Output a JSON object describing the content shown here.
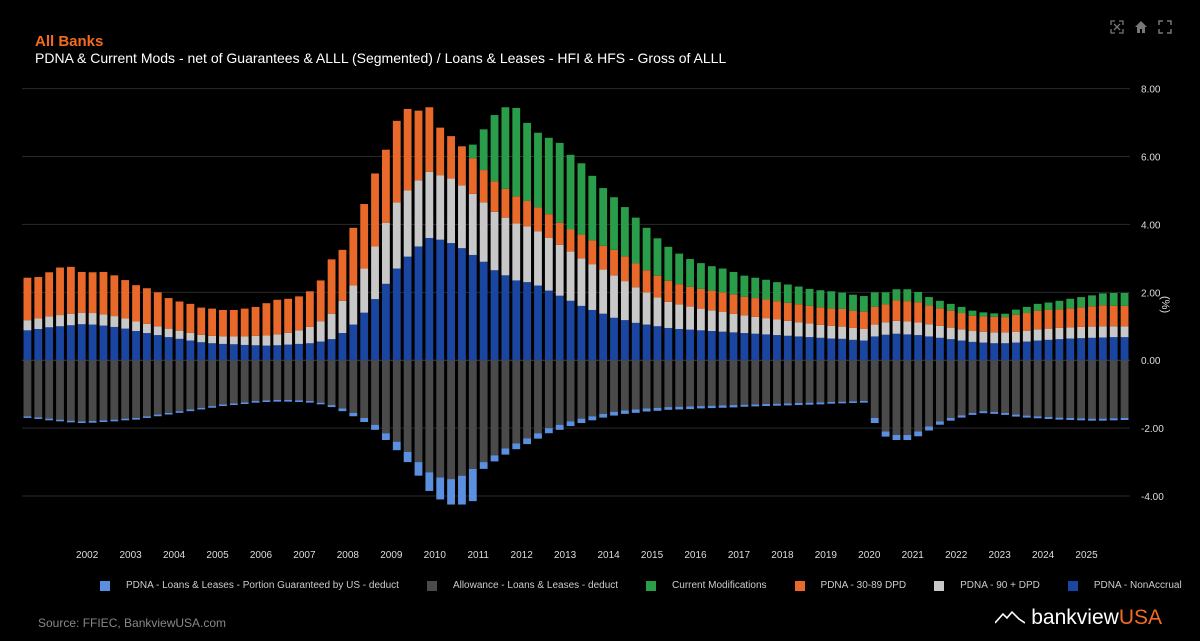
{
  "header": {
    "title": "All Banks",
    "subtitle": "PDNA & Current Mods - net of Guarantees & ALLL (Segmented)  /  Loans & Leases - HFI & HFS - Gross of ALLL"
  },
  "toolbar": {
    "icons": [
      "autoscale-icon",
      "home-icon",
      "fullscreen-icon"
    ]
  },
  "footer": {
    "source": "Source: FFIEC, BankviewUSA.com",
    "brand_main": "bankview",
    "brand_accent": "USA"
  },
  "colors": {
    "title": "#f26b21",
    "guaranteed": "#5b8fe0",
    "allowance": "#4a4a4a",
    "mods": "#2a9d4a",
    "dpd30": "#e8692a",
    "dpd90": "#c8c8c8",
    "nonaccrual": "#1a45a0",
    "grid": "#2a2a2a"
  },
  "chart_data": {
    "type": "bar",
    "stacked": true,
    "title": "PDNA & Current Mods - net of Guarantees & ALLL (Segmented)  /  Loans & Leases - HFI & HFS - Gross of ALLL",
    "ylabel": "(%)",
    "ylim": [
      -5.0,
      8.4
    ],
    "yticks": [
      8.0,
      6.0,
      4.0,
      2.0,
      0.0,
      -2.0,
      -4.0
    ],
    "ytick_labels": [
      "8.00",
      "6.00",
      "4.00",
      "2.00",
      "0.00",
      "-2.00",
      "-4.00"
    ],
    "x_start": {
      "year": 2001,
      "quarter": 1
    },
    "year_labels": [
      "2002",
      "2003",
      "2004",
      "2005",
      "2006",
      "2007",
      "2008",
      "2009",
      "2010",
      "2011",
      "2012",
      "2013",
      "2014",
      "2015",
      "2016",
      "2017",
      "2018",
      "2019",
      "2020",
      "2021",
      "2022",
      "2023",
      "2024",
      "2025"
    ],
    "series_order_positive": [
      "nonaccrual",
      "dpd90",
      "dpd30",
      "mods"
    ],
    "series_order_negative": [
      "allowance",
      "guaranteed"
    ],
    "legend": [
      {
        "key": "guaranteed",
        "name": "PDNA - Loans & Leases - Portion Guaranteed by US - deduct"
      },
      {
        "key": "allowance",
        "name": "Allowance - Loans & Leases - deduct"
      },
      {
        "key": "mods",
        "name": "Current Modifications"
      },
      {
        "key": "dpd30",
        "name": "PDNA - 30-89 DPD"
      },
      {
        "key": "dpd90",
        "name": "PDNA - 90 + DPD"
      },
      {
        "key": "nonaccrual",
        "name": "PDNA - NonAccrual"
      }
    ],
    "series": {
      "nonaccrual": [
        0.88,
        0.92,
        0.97,
        1.0,
        1.03,
        1.06,
        1.05,
        1.02,
        0.98,
        0.93,
        0.86,
        0.8,
        0.74,
        0.68,
        0.63,
        0.58,
        0.53,
        0.5,
        0.48,
        0.47,
        0.45,
        0.44,
        0.43,
        0.44,
        0.46,
        0.48,
        0.5,
        0.55,
        0.62,
        0.8,
        1.05,
        1.4,
        1.8,
        2.25,
        2.7,
        3.05,
        3.35,
        3.6,
        3.55,
        3.45,
        3.3,
        3.1,
        2.9,
        2.65,
        2.5,
        2.35,
        2.3,
        2.2,
        2.05,
        1.9,
        1.75,
        1.6,
        1.48,
        1.37,
        1.25,
        1.18,
        1.1,
        1.05,
        1.0,
        0.95,
        0.92,
        0.9,
        0.88,
        0.86,
        0.84,
        0.82,
        0.8,
        0.78,
        0.76,
        0.74,
        0.72,
        0.7,
        0.68,
        0.66,
        0.64,
        0.63,
        0.6,
        0.58,
        0.7,
        0.75,
        0.78,
        0.76,
        0.74,
        0.7,
        0.66,
        0.62,
        0.58,
        0.54,
        0.52,
        0.5,
        0.5,
        0.52,
        0.55,
        0.58,
        0.6,
        0.62,
        0.64,
        0.65,
        0.66,
        0.67,
        0.68,
        0.68
      ],
      "dpd90": [
        0.3,
        0.31,
        0.32,
        0.33,
        0.34,
        0.34,
        0.34,
        0.33,
        0.32,
        0.3,
        0.28,
        0.27,
        0.26,
        0.25,
        0.24,
        0.23,
        0.22,
        0.22,
        0.22,
        0.23,
        0.25,
        0.28,
        0.3,
        0.32,
        0.35,
        0.4,
        0.48,
        0.6,
        0.75,
        0.95,
        1.15,
        1.3,
        1.55,
        1.8,
        1.95,
        1.95,
        1.95,
        1.95,
        1.9,
        1.9,
        1.85,
        1.8,
        1.75,
        1.72,
        1.7,
        1.68,
        1.64,
        1.6,
        1.55,
        1.5,
        1.45,
        1.4,
        1.35,
        1.3,
        1.25,
        1.15,
        1.05,
        0.95,
        0.85,
        0.77,
        0.72,
        0.68,
        0.64,
        0.61,
        0.58,
        0.55,
        0.52,
        0.5,
        0.48,
        0.46,
        0.44,
        0.42,
        0.4,
        0.38,
        0.37,
        0.36,
        0.35,
        0.34,
        0.35,
        0.37,
        0.38,
        0.38,
        0.37,
        0.36,
        0.35,
        0.34,
        0.33,
        0.32,
        0.32,
        0.32,
        0.32,
        0.32,
        0.32,
        0.33,
        0.33,
        0.33,
        0.33,
        0.33,
        0.33,
        0.33,
        0.32,
        0.32
      ],
      "dpd30": [
        1.25,
        1.22,
        1.3,
        1.4,
        1.38,
        1.2,
        1.2,
        1.25,
        1.2,
        1.13,
        1.07,
        1.05,
        1.0,
        0.9,
        0.86,
        0.85,
        0.8,
        0.8,
        0.78,
        0.78,
        0.82,
        0.85,
        0.95,
        1.02,
        1.0,
        1.0,
        1.05,
        1.2,
        1.6,
        1.5,
        1.7,
        1.9,
        2.15,
        2.15,
        2.4,
        2.4,
        2.05,
        1.9,
        1.4,
        1.25,
        1.15,
        1.05,
        0.95,
        0.9,
        0.85,
        0.8,
        0.75,
        0.7,
        0.7,
        0.65,
        0.65,
        0.7,
        0.7,
        0.7,
        0.75,
        0.73,
        0.7,
        0.65,
        0.64,
        0.62,
        0.6,
        0.58,
        0.58,
        0.58,
        0.58,
        0.57,
        0.55,
        0.55,
        0.55,
        0.54,
        0.53,
        0.53,
        0.52,
        0.52,
        0.52,
        0.52,
        0.51,
        0.51,
        0.52,
        0.52,
        0.6,
        0.6,
        0.6,
        0.55,
        0.52,
        0.5,
        0.48,
        0.45,
        0.45,
        0.46,
        0.45,
        0.5,
        0.52,
        0.55,
        0.55,
        0.55,
        0.56,
        0.58,
        0.6,
        0.62,
        0.6,
        0.6
      ],
      "mods": [
        0,
        0,
        0,
        0,
        0,
        0,
        0,
        0,
        0,
        0,
        0,
        0,
        0,
        0,
        0,
        0,
        0,
        0,
        0,
        0,
        0,
        0,
        0,
        0,
        0,
        0,
        0,
        0,
        0,
        0,
        0,
        0,
        0,
        0,
        0,
        0,
        0,
        0,
        0,
        0,
        0,
        0.4,
        1.2,
        1.95,
        2.4,
        2.6,
        2.3,
        2.2,
        2.25,
        2.35,
        2.2,
        2.1,
        1.9,
        1.7,
        1.55,
        1.45,
        1.35,
        1.25,
        1.1,
        1.0,
        0.9,
        0.82,
        0.76,
        0.72,
        0.7,
        0.66,
        0.62,
        0.6,
        0.58,
        0.56,
        0.54,
        0.52,
        0.5,
        0.5,
        0.5,
        0.48,
        0.47,
        0.46,
        0.43,
        0.36,
        0.33,
        0.35,
        0.3,
        0.25,
        0.22,
        0.2,
        0.18,
        0.15,
        0.12,
        0.1,
        0.1,
        0.15,
        0.18,
        0.2,
        0.22,
        0.25,
        0.28,
        0.3,
        0.32,
        0.35,
        0.38,
        0.38
      ],
      "allowance": [
        -1.65,
        -1.68,
        -1.72,
        -1.75,
        -1.78,
        -1.8,
        -1.79,
        -1.77,
        -1.75,
        -1.72,
        -1.7,
        -1.65,
        -1.6,
        -1.55,
        -1.5,
        -1.45,
        -1.4,
        -1.35,
        -1.3,
        -1.27,
        -1.24,
        -1.2,
        -1.18,
        -1.17,
        -1.17,
        -1.18,
        -1.2,
        -1.25,
        -1.32,
        -1.42,
        -1.55,
        -1.7,
        -1.9,
        -2.15,
        -2.4,
        -2.7,
        -3.0,
        -3.3,
        -3.45,
        -3.5,
        -3.4,
        -3.2,
        -3.0,
        -2.8,
        -2.6,
        -2.45,
        -2.3,
        -2.15,
        -2.0,
        -1.9,
        -1.8,
        -1.72,
        -1.65,
        -1.58,
        -1.52,
        -1.48,
        -1.45,
        -1.42,
        -1.4,
        -1.38,
        -1.37,
        -1.36,
        -1.35,
        -1.34,
        -1.33,
        -1.32,
        -1.31,
        -1.3,
        -1.29,
        -1.28,
        -1.27,
        -1.26,
        -1.25,
        -1.24,
        -1.23,
        -1.22,
        -1.21,
        -1.2,
        -1.7,
        -2.1,
        -2.2,
        -2.2,
        -2.1,
        -1.95,
        -1.8,
        -1.7,
        -1.62,
        -1.55,
        -1.5,
        -1.52,
        -1.55,
        -1.6,
        -1.63,
        -1.65,
        -1.67,
        -1.69,
        -1.7,
        -1.71,
        -1.72,
        -1.72,
        -1.71,
        -1.7
      ],
      "guaranteed": [
        -0.05,
        -0.05,
        -0.05,
        -0.05,
        -0.05,
        -0.05,
        -0.05,
        -0.05,
        -0.05,
        -0.05,
        -0.05,
        -0.05,
        -0.05,
        -0.05,
        -0.05,
        -0.05,
        -0.05,
        -0.05,
        -0.05,
        -0.05,
        -0.05,
        -0.05,
        -0.05,
        -0.05,
        -0.05,
        -0.05,
        -0.05,
        -0.05,
        -0.06,
        -0.08,
        -0.1,
        -0.12,
        -0.15,
        -0.2,
        -0.25,
        -0.3,
        -0.4,
        -0.55,
        -0.65,
        -0.75,
        -0.85,
        -0.95,
        -0.2,
        -0.18,
        -0.18,
        -0.17,
        -0.17,
        -0.16,
        -0.15,
        -0.15,
        -0.14,
        -0.13,
        -0.12,
        -0.11,
        -0.11,
        -0.1,
        -0.1,
        -0.09,
        -0.09,
        -0.08,
        -0.08,
        -0.08,
        -0.07,
        -0.07,
        -0.07,
        -0.07,
        -0.06,
        -0.06,
        -0.06,
        -0.06,
        -0.06,
        -0.06,
        -0.06,
        -0.06,
        -0.05,
        -0.05,
        -0.05,
        -0.05,
        -0.15,
        -0.15,
        -0.15,
        -0.15,
        -0.14,
        -0.12,
        -0.1,
        -0.08,
        -0.07,
        -0.06,
        -0.06,
        -0.06,
        -0.06,
        -0.06,
        -0.06,
        -0.06,
        -0.06,
        -0.06,
        -0.06,
        -0.06,
        -0.06,
        -0.06,
        -0.06,
        -0.06
      ]
    }
  }
}
